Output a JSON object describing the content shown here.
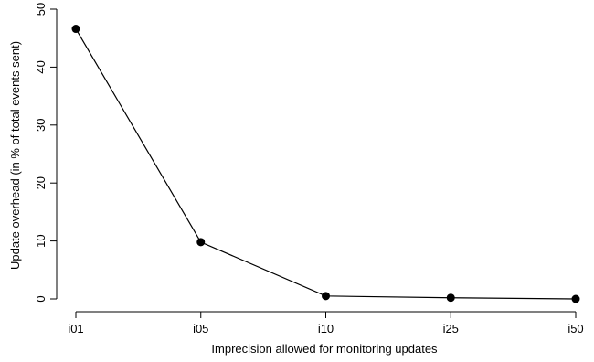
{
  "chart_data": {
    "type": "line",
    "categories": [
      "i01",
      "i05",
      "i10",
      "i25",
      "i50"
    ],
    "series": [
      {
        "values": [
          46.6,
          9.8,
          0.5,
          0.2,
          0.0
        ]
      }
    ],
    "xlabel": "Imprecision allowed for monitoring updates",
    "ylabel": "Update overhead (in % of total events sent)",
    "ylim": [
      0,
      50
    ],
    "yticks": [
      0,
      10,
      20,
      30,
      40,
      50
    ],
    "grid": false,
    "marker": "filled-circle",
    "color": "#000000"
  }
}
